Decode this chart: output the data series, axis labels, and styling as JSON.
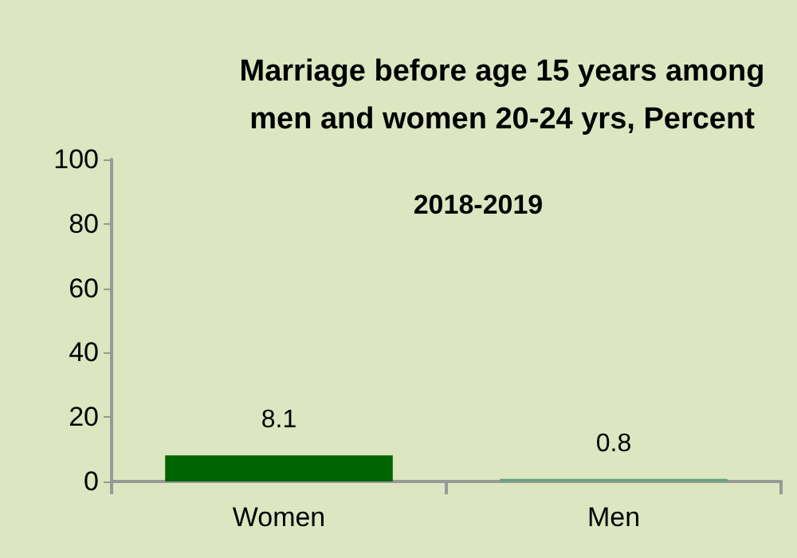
{
  "chart_data": {
    "type": "bar",
    "title": "Marriage before age 15 years among\nmen and women 20-24 yrs, Percent",
    "subtitle": "2018-2019",
    "categories": [
      "Women",
      "Men"
    ],
    "values": [
      8.1,
      0.8
    ],
    "colors": [
      "#006400",
      "#5fa87a"
    ],
    "ylim": [
      0,
      100
    ],
    "yticks": [
      0,
      20,
      40,
      60,
      80,
      100
    ],
    "grid": false,
    "data_labels": true
  }
}
